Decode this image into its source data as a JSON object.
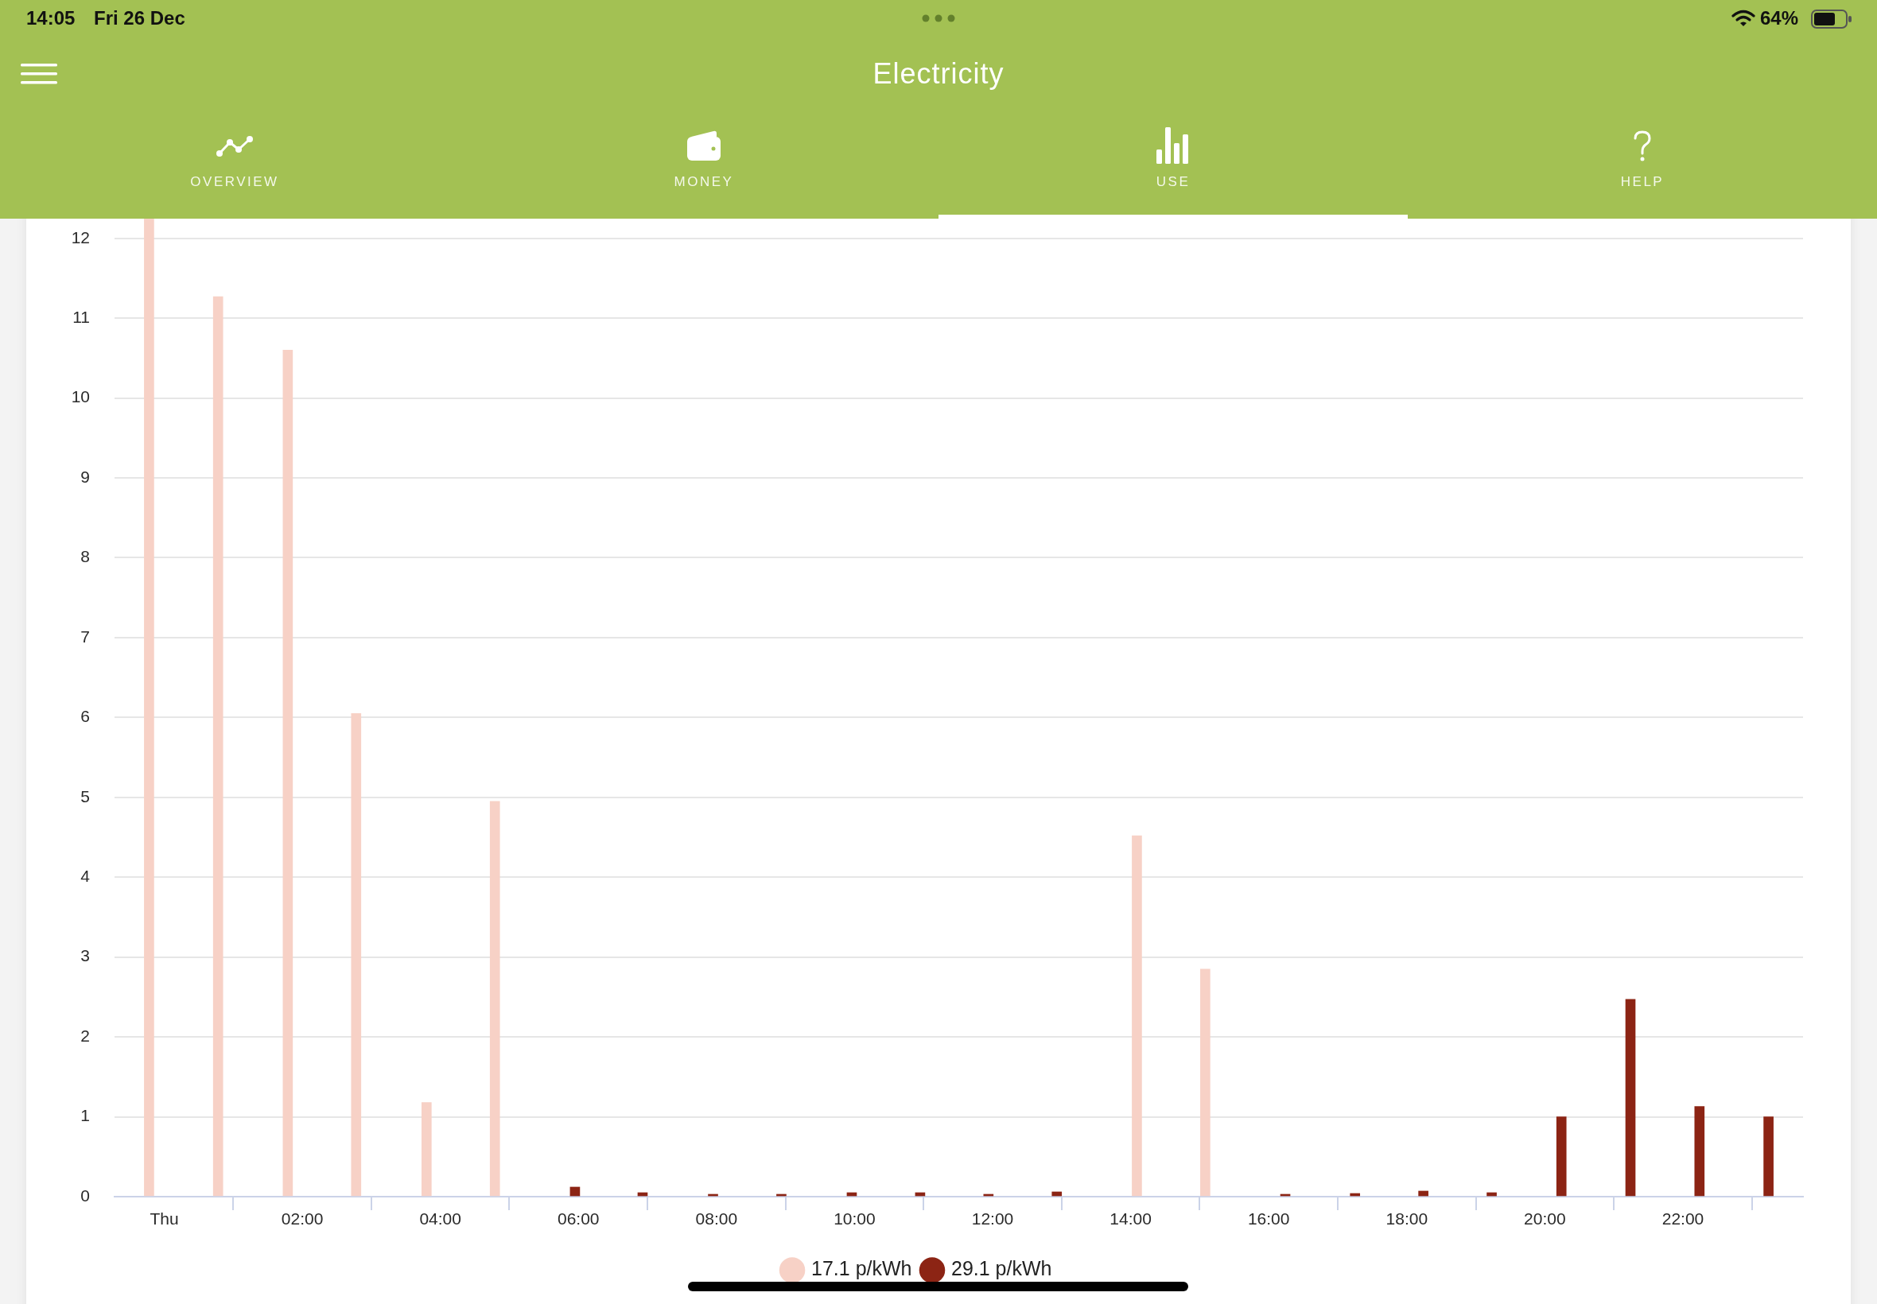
{
  "chart_data": {
    "type": "bar",
    "title": "Electricity",
    "annotations": [
      "14:05",
      "Fri 26 Dec",
      "64%",
      "OVERVIEW",
      "MONEY",
      "USE",
      "HELP"
    ],
    "xlim": [
      -0.72,
      23.74
    ],
    "xticks": [
      {
        "value": 0,
        "label": "Thu"
      },
      {
        "value": 2,
        "label": "02:00"
      },
      {
        "value": 4,
        "label": "04:00"
      },
      {
        "value": 6,
        "label": "06:00"
      },
      {
        "value": 8,
        "label": "08:00"
      },
      {
        "value": 10,
        "label": "10:00"
      },
      {
        "value": 12,
        "label": "12:00"
      },
      {
        "value": 14,
        "label": "14:00"
      },
      {
        "value": 16,
        "label": "16:00"
      },
      {
        "value": 18,
        "label": "18:00"
      },
      {
        "value": 20,
        "label": "20:00"
      },
      {
        "value": 22,
        "label": "22:00"
      }
    ],
    "ylim": [
      0,
      12.25
    ],
    "yticks": [
      0,
      1,
      2,
      3,
      4,
      5,
      6,
      7,
      8,
      9,
      10,
      11,
      12
    ],
    "series": [
      {
        "name": "17.1 p/kWh",
        "color": "#f7d1c6",
        "x": [
          -0.22,
          0.78,
          1.79,
          2.78,
          3.8,
          4.79,
          14.09,
          15.08
        ],
        "values": [
          12.25,
          11.27,
          10.6,
          6.05,
          1.18,
          4.95,
          4.52,
          2.85
        ]
      },
      {
        "name": "29.1 p/kWh",
        "color": "#8c2414",
        "x": [
          5.95,
          6.93,
          7.95,
          8.94,
          9.96,
          10.95,
          11.94,
          12.93,
          16.24,
          17.25,
          18.24,
          19.23,
          20.24,
          21.24,
          22.24,
          23.24
        ],
        "values": [
          0.12,
          0.05,
          0.03,
          0.03,
          0.05,
          0.05,
          0.03,
          0.06,
          0.03,
          0.04,
          0.07,
          0.05,
          1.0,
          2.47,
          1.13,
          1.0
        ]
      }
    ],
    "grid": "y",
    "legend": "bottom"
  }
}
